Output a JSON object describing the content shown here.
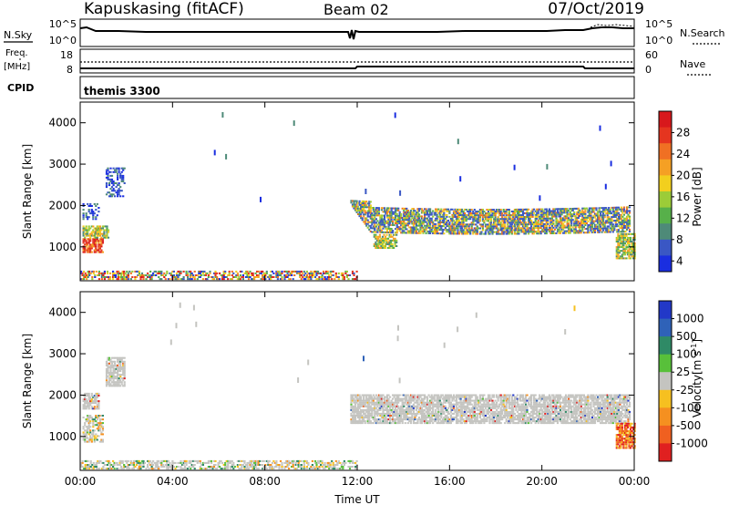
{
  "header": {
    "station": "Kapuskasing (fitACF)",
    "beam": "Beam 02",
    "date": "07/Oct/2019"
  },
  "top_panels": {
    "nsky_label": "N.Sky",
    "nsearch_label": "N.Search",
    "noise_ticks_left": [
      "10^5",
      "10^0"
    ],
    "noise_ticks_right": [
      "10^5",
      "10^0"
    ],
    "freq_label": "Freq.",
    "freq_unit": "[MHz]",
    "freq_ticks": [
      "18",
      "8"
    ],
    "nave_label": "Nave",
    "nave_ticks": [
      "60",
      "0"
    ],
    "cpid_label": "CPID",
    "cpid_value": "themis 3300"
  },
  "chart_data": [
    {
      "type": "heatmap",
      "panel": "power",
      "ylabel": "Slant Range [km]",
      "yticks": [
        1000,
        2000,
        3000,
        4000
      ],
      "ylim": [
        180,
        4500
      ],
      "xticks": [
        "00:00",
        "04:00",
        "08:00",
        "12:00",
        "16:00",
        "20:00",
        "00:00"
      ],
      "xlim_hours": [
        0,
        24
      ],
      "colorbar": {
        "label": "Power [dB]",
        "ticks": [
          "4",
          "8",
          "12",
          "16",
          "20",
          "24",
          "28"
        ],
        "colors": [
          "#1a2ee0",
          "#3a57c4",
          "#4e8a78",
          "#57b04a",
          "#9ccc38",
          "#f2cf1e",
          "#f5a024",
          "#f07023",
          "#e5351f",
          "#d8181c"
        ]
      },
      "regions": [
        {
          "t": [
            0.1,
            1.0
          ],
          "r": [
            850,
            1200
          ],
          "level": "high"
        },
        {
          "t": [
            0.1,
            1.2
          ],
          "r": [
            1200,
            1500
          ],
          "level": "mid"
        },
        {
          "t": [
            0.1,
            0.8
          ],
          "r": [
            1650,
            2050
          ],
          "level": "low"
        },
        {
          "t": [
            1.1,
            1.9
          ],
          "r": [
            2200,
            2900
          ],
          "level": "low"
        },
        {
          "t": [
            0.0,
            12.0
          ],
          "r": [
            200,
            420
          ],
          "level": "mixed"
        },
        {
          "t": [
            11.7,
            23.8
          ],
          "r": [
            1300,
            2000
          ],
          "level": "band"
        },
        {
          "t": [
            12.7,
            13.7
          ],
          "r": [
            950,
            1300
          ],
          "level": "mid"
        },
        {
          "t": [
            23.2,
            24.0
          ],
          "r": [
            700,
            1300
          ],
          "level": "mid"
        }
      ]
    },
    {
      "type": "heatmap",
      "panel": "velocity",
      "ylabel": "Slant Range [km]",
      "yticks": [
        1000,
        2000,
        3000,
        4000
      ],
      "ylim": [
        180,
        4500
      ],
      "xticks": [
        "00:00",
        "04:00",
        "08:00",
        "12:00",
        "16:00",
        "20:00",
        "00:00"
      ],
      "xlabel": "Time UT",
      "xlim_hours": [
        0,
        24
      ],
      "colorbar": {
        "label": "Velocity",
        "unit": "[m s",
        "unit_sup": "-1",
        "unit_end": "]",
        "ticks": [
          "1000",
          "500",
          "100",
          "25",
          "-25",
          "-100",
          "-500",
          "-1000"
        ],
        "colors": [
          "#2238c8",
          "#2f62b8",
          "#2f8a66",
          "#58c03a",
          "#c4c4c0",
          "#f6c020",
          "#f59020",
          "#f06020",
          "#e02020"
        ]
      },
      "regions": [
        {
          "t": [
            0.1,
            1.0
          ],
          "r": [
            850,
            1500
          ],
          "level": "mixed"
        },
        {
          "t": [
            0.1,
            0.8
          ],
          "r": [
            1650,
            2050
          ],
          "level": "gray"
        },
        {
          "t": [
            1.1,
            1.9
          ],
          "r": [
            2200,
            2900
          ],
          "level": "gray"
        },
        {
          "t": [
            0.0,
            12.0
          ],
          "r": [
            200,
            420
          ],
          "level": "mixed"
        },
        {
          "t": [
            11.7,
            23.8
          ],
          "r": [
            1300,
            2000
          ],
          "level": "gray"
        },
        {
          "t": [
            23.2,
            24.0
          ],
          "r": [
            700,
            1300
          ],
          "level": "orange"
        }
      ]
    }
  ]
}
